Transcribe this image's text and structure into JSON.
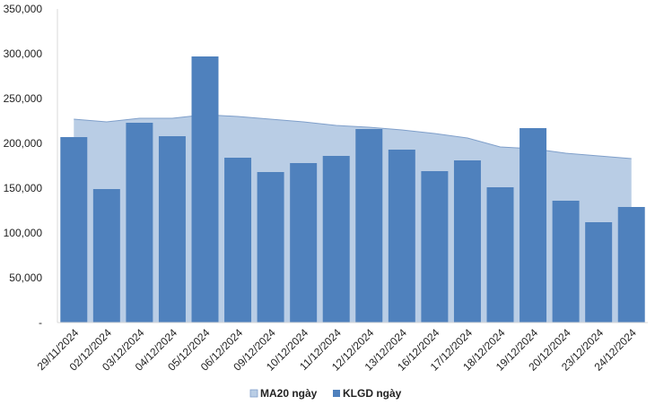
{
  "chart_data": {
    "type": "bar",
    "categories": [
      "29/11/2024",
      "02/12/2024",
      "03/12/2024",
      "04/12/2024",
      "05/12/2024",
      "06/12/2024",
      "09/12/2024",
      "10/12/2024",
      "11/12/2024",
      "12/12/2024",
      "13/12/2024",
      "16/12/2024",
      "17/12/2024",
      "18/12/2024",
      "19/12/2024",
      "20/12/2024",
      "23/12/2024",
      "24/12/2024"
    ],
    "series": [
      {
        "name": "KLGD ngày",
        "type": "bar",
        "color": "#4f81bd",
        "values": [
          207000,
          149000,
          223000,
          208000,
          297000,
          184000,
          168000,
          178000,
          186000,
          216000,
          193000,
          169000,
          181000,
          151000,
          217000,
          136000,
          112000,
          129000
        ]
      },
      {
        "name": "MA20 ngày",
        "type": "area",
        "color": "#b9cde5",
        "values": [
          227000,
          224000,
          228000,
          228000,
          232000,
          230000,
          227000,
          224000,
          220000,
          218000,
          215000,
          211000,
          206000,
          196000,
          194000,
          189000,
          186000,
          183000
        ]
      }
    ],
    "y_ticks": [
      "-",
      "50,000",
      "100,000",
      "150,000",
      "200,000",
      "250,000",
      "300,000",
      "350,000"
    ],
    "ylim": [
      0,
      350000
    ],
    "grid": false,
    "legend_position": "bottom",
    "legend": [
      {
        "label": "MA20 ngày",
        "color": "#b9cde5"
      },
      {
        "label": "KLGD ngày",
        "color": "#4f81bd"
      }
    ]
  }
}
